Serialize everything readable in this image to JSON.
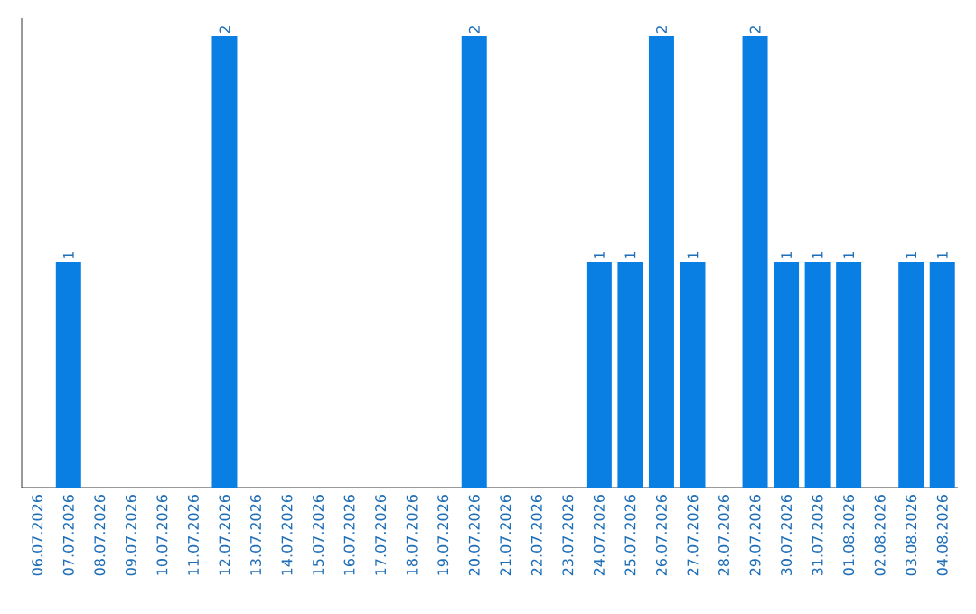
{
  "chart_data": {
    "type": "bar",
    "categories": [
      "06.07.2026",
      "07.07.2026",
      "08.07.2026",
      "09.07.2026",
      "10.07.2026",
      "11.07.2026",
      "12.07.2026",
      "13.07.2026",
      "14.07.2026",
      "15.07.2026",
      "16.07.2026",
      "17.07.2026",
      "18.07.2026",
      "19.07.2026",
      "20.07.2026",
      "21.07.2026",
      "22.07.2026",
      "23.07.2026",
      "24.07.2026",
      "25.07.2026",
      "26.07.2026",
      "27.07.2026",
      "28.07.2026",
      "29.07.2026",
      "30.07.2026",
      "31.07.2026",
      "01.08.2026",
      "02.08.2026",
      "03.08.2026",
      "04.08.2026"
    ],
    "values": [
      0,
      1,
      0,
      0,
      0,
      0,
      2,
      0,
      0,
      0,
      0,
      0,
      0,
      0,
      2,
      0,
      0,
      0,
      1,
      1,
      2,
      1,
      0,
      2,
      1,
      1,
      1,
      0,
      1,
      1
    ],
    "value_labels": [
      null,
      "1",
      null,
      null,
      null,
      null,
      "2",
      null,
      null,
      null,
      null,
      null,
      null,
      null,
      "2",
      null,
      null,
      null,
      "1",
      "1",
      "2",
      "1",
      null,
      "2",
      "1",
      "1",
      "1",
      null,
      "1",
      "1"
    ],
    "color": "#0a7fe3",
    "tick_labels": "x"
  }
}
